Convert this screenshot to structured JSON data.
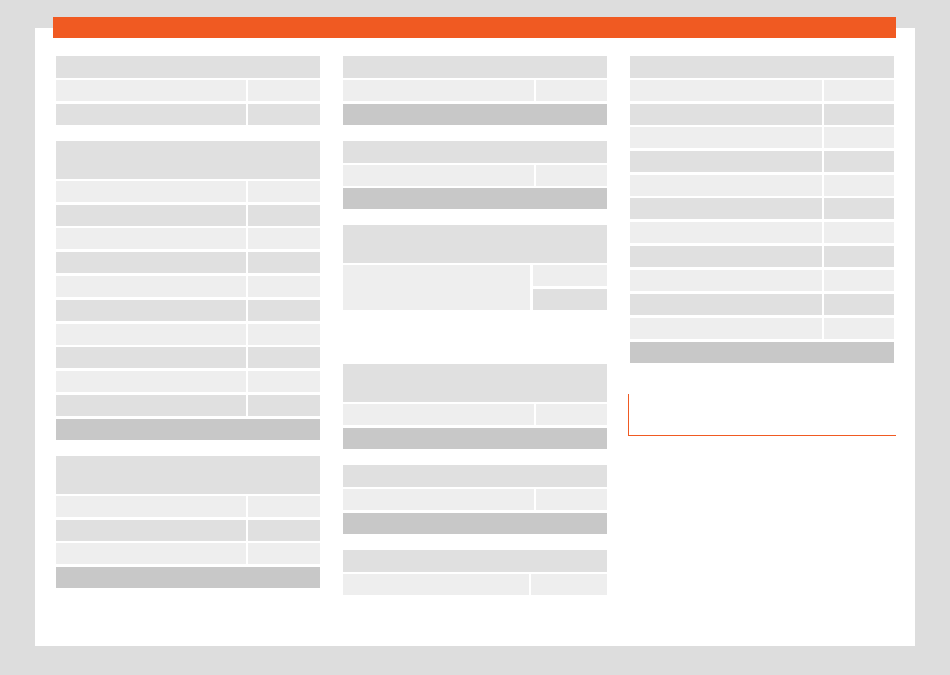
{
  "colors": {
    "background": "#dddddd",
    "page": "#ffffff",
    "accent": "#f05a22",
    "header": "#e0e0e0",
    "row_light": "#eeeeee",
    "row_medium": "#e0e0e0",
    "footer": "#c8c8c8"
  }
}
